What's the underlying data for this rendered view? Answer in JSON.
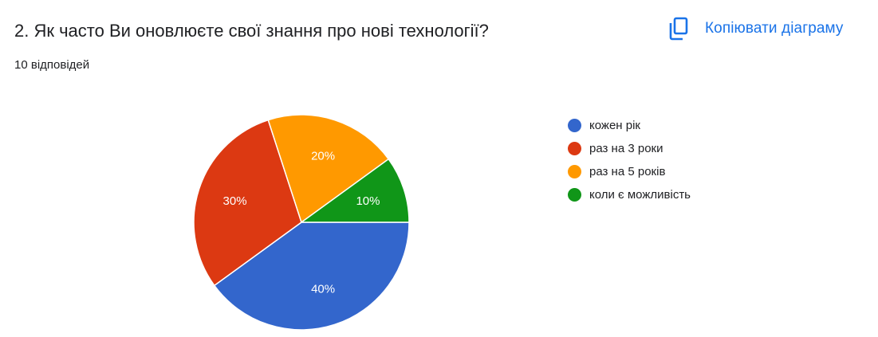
{
  "question": {
    "title": "2. Як часто Ви оновлюєте свої знання про нові технології?",
    "responses": "10 відповідей"
  },
  "toolbar": {
    "copy_label": "Копіювати діаграму",
    "copy_icon": "copy-icon"
  },
  "colors": {
    "accent": "#1a73e8"
  },
  "chart_data": {
    "type": "pie",
    "title": "",
    "categories": [
      "кожен рік",
      "раз на 3 роки",
      "раз на 5 років",
      "коли є можливість"
    ],
    "values": [
      40,
      30,
      20,
      10
    ],
    "labels": [
      "40%",
      "30%",
      "20%",
      "10%"
    ],
    "colors": [
      "#3366cc",
      "#dc3912",
      "#ff9900",
      "#109618"
    ],
    "legend_position": "right"
  }
}
